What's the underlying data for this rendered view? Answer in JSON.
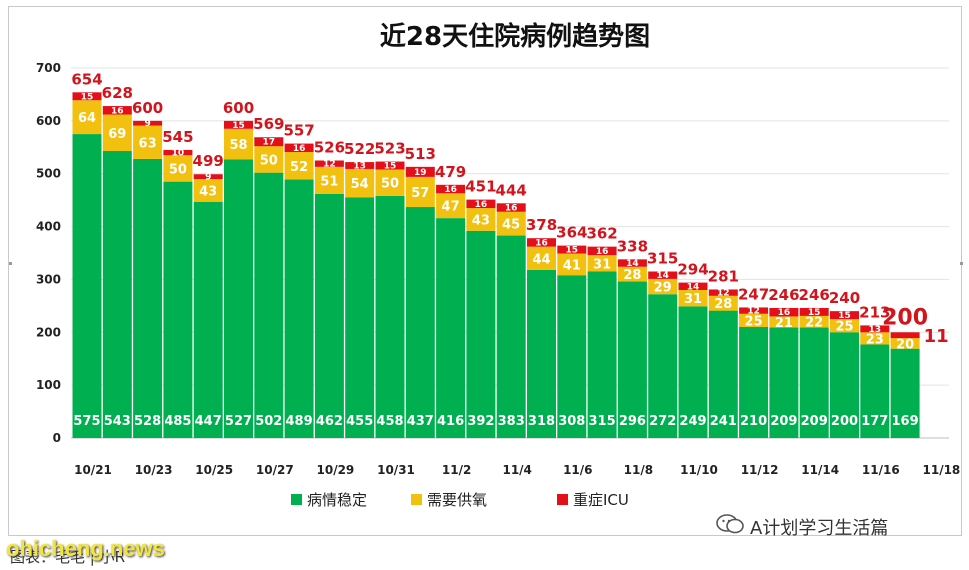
{
  "chart_data": {
    "type": "bar",
    "stacked": true,
    "title": "近28天住院病例趋势图",
    "ylim": [
      0,
      700
    ],
    "yticks": [
      0,
      100,
      200,
      300,
      400,
      500,
      600,
      700
    ],
    "grid": true,
    "legend_position": "bottom",
    "categories": [
      "10/21",
      "10/22",
      "10/23",
      "10/24",
      "10/25",
      "10/26",
      "10/27",
      "10/28",
      "10/29",
      "10/30",
      "10/31",
      "11/1",
      "11/2",
      "11/3",
      "11/4",
      "11/5",
      "11/6",
      "11/7",
      "11/8",
      "11/9",
      "11/10",
      "11/11",
      "11/12",
      "11/13",
      "11/14",
      "11/15",
      "11/16",
      "11/17"
    ],
    "x_tick_labels": [
      "10/21",
      "10/23",
      "10/25",
      "10/27",
      "10/29",
      "10/31",
      "11/2",
      "11/4",
      "11/6",
      "11/8",
      "11/10",
      "11/12",
      "11/14",
      "11/16",
      "11/18"
    ],
    "series": [
      {
        "name": "病情稳定",
        "color": "#00b050",
        "values": [
          575,
          543,
          528,
          485,
          447,
          527,
          502,
          489,
          462,
          455,
          458,
          437,
          416,
          392,
          383,
          318,
          308,
          315,
          296,
          272,
          249,
          241,
          210,
          209,
          209,
          200,
          177,
          169
        ]
      },
      {
        "name": "需要供氧",
        "color": "#f2c00f",
        "values": [
          64,
          69,
          63,
          50,
          43,
          58,
          50,
          52,
          51,
          54,
          50,
          57,
          47,
          43,
          45,
          44,
          41,
          31,
          28,
          29,
          31,
          28,
          25,
          21,
          22,
          25,
          23,
          20
        ]
      },
      {
        "name": "重症ICU",
        "color": "#e3101a",
        "values": [
          15,
          16,
          9,
          10,
          9,
          15,
          17,
          16,
          12,
          13,
          15,
          19,
          16,
          16,
          16,
          16,
          15,
          16,
          14,
          14,
          14,
          12,
          12,
          16,
          15,
          15,
          13,
          11
        ]
      }
    ],
    "totals": [
      654,
      628,
      600,
      545,
      499,
      600,
      569,
      557,
      526,
      522,
      523,
      513,
      479,
      451,
      444,
      378,
      364,
      362,
      338,
      315,
      294,
      281,
      247,
      246,
      246,
      240,
      213,
      200
    ]
  },
  "footer": {
    "watermark": "ohicheng.news",
    "source": "图表：毛毛 | 小R",
    "brand": "A计划学习生活篇"
  },
  "icons": {
    "brand_icon": "wechat-icon"
  }
}
